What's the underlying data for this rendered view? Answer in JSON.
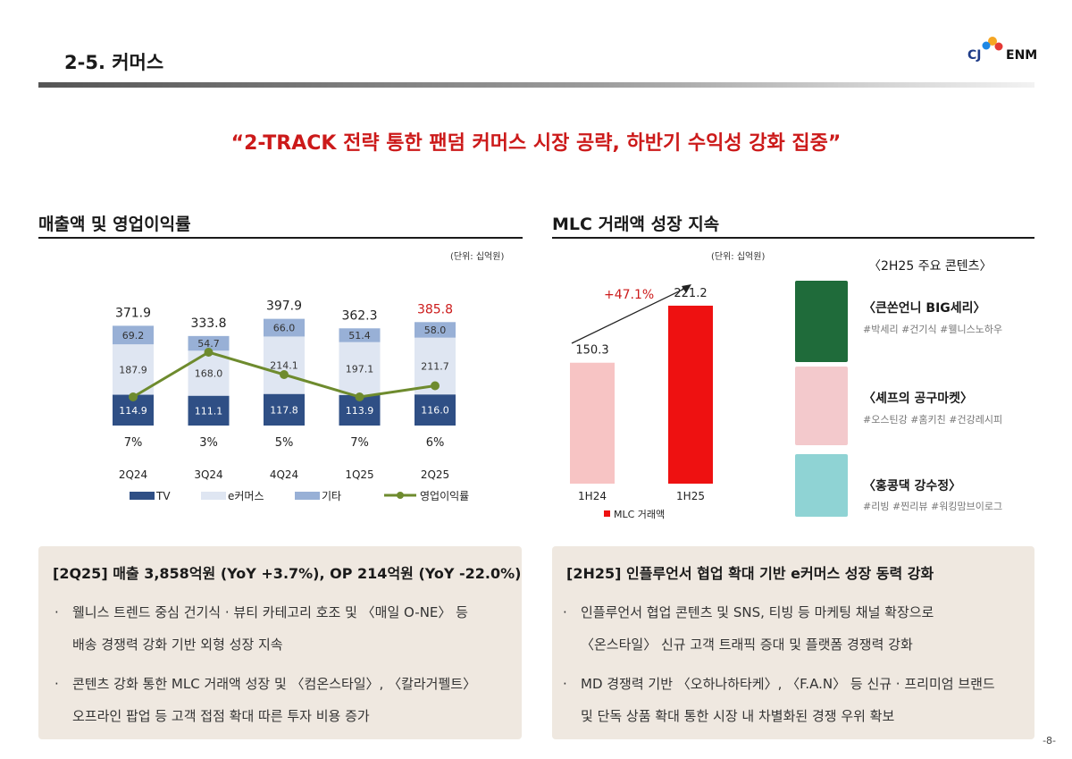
{
  "header": {
    "page_title": "2-5. 커머스",
    "logo_cj": "CJ",
    "logo_enm": "ENM",
    "headline": "“2-TRACK 전략 통한 팬덤 커머스 시장 공략, 하반기 수익성 강화 집중”"
  },
  "left_section": {
    "title": "매출액 및 영업이익률",
    "unit": "(단위: 십억원)"
  },
  "right_section": {
    "title": "MLC 거래액 성장 지속",
    "unit": "(단위: 십억원)",
    "contents_title": "〈2H25 주요 콘텐츠〉"
  },
  "contents": [
    {
      "title": "〈큰쏜언니 BIG세리〉",
      "tags": "#박세리 #건기식 #웰니스노하우",
      "thumb_color": "#1f6b3a"
    },
    {
      "title": "〈셰프의 공구마켓〉",
      "tags": "#오스틴강 #홈키친 #건강레시피",
      "thumb_color": "#f3c9cc"
    },
    {
      "title": "〈홍콩댁 강수정〉",
      "tags": "#리빙 #찐리뷰 #워킹맘브이로그",
      "thumb_color": "#8fd3d4"
    }
  ],
  "colors": {
    "tv": "#2f4f85",
    "ecommerce": "#dfe6f2",
    "other": "#98b0d6",
    "op_line": "#6e8b2e",
    "mlc_2h25": "#ee1111",
    "mlc_1h24": "#f7c4c4",
    "accent_red": "#cc1a1a"
  },
  "chart_data": [
    {
      "type": "bar",
      "stacked": true,
      "categories": [
        "2Q24",
        "3Q24",
        "4Q24",
        "1Q25",
        "2Q25"
      ],
      "series": [
        {
          "name": "TV",
          "values": [
            114.9,
            111.1,
            117.8,
            113.9,
            116.0
          ]
        },
        {
          "name": "e커머스",
          "values": [
            187.9,
            168.0,
            214.1,
            197.1,
            211.7
          ]
        },
        {
          "name": "기타",
          "values": [
            69.2,
            54.7,
            66.0,
            51.4,
            58.0
          ]
        }
      ],
      "totals": [
        371.9,
        333.8,
        397.9,
        362.3,
        385.8
      ],
      "line_series": {
        "name": "영업이익률",
        "values": [
          7,
          3,
          5,
          7,
          6
        ],
        "labels": [
          "7%",
          "3%",
          "5%",
          "7%",
          "6%"
        ]
      },
      "legend": [
        "TV",
        "e커머스",
        "기타",
        "영업이익률"
      ],
      "legend_position": "bottom"
    },
    {
      "type": "bar",
      "categories": [
        "1H24",
        "1H25"
      ],
      "series": [
        {
          "name": "MLC 거래액",
          "values": [
            150.3,
            221.2
          ]
        }
      ],
      "annotation": "+47.1%",
      "legend": [
        "MLC 거래액"
      ],
      "legend_position": "bottom"
    }
  ],
  "left_box": {
    "title": "[2Q25] 매출 3,858억원 (YoY +3.7%), OP 214억원 (YoY -22.0%)",
    "bullets": [
      {
        "dot": "·",
        "line1": "웰니스 트렌드 중심 건기식 · 뷰티 카테고리 호조 및 〈매일 O-NE〉 등",
        "line2": "배송 경쟁력 강화 기반 외형 성장 지속"
      },
      {
        "dot": "·",
        "line1": "콘텐츠 강화 통한 MLC 거래액 성장 및 〈컴온스타일〉, 〈칼라거펠트〉",
        "line2": "오프라인 팝업 등 고객 접점 확대 따른 투자 비용 증가"
      }
    ]
  },
  "right_box": {
    "title": "[2H25] 인플루언서 협업 확대 기반 e커머스 성장 동력 강화",
    "bullets": [
      {
        "dot": "·",
        "line1": "인플루언서 협업 콘텐츠 및 SNS, 티빙 등 마케팅 채널 확장으로",
        "line2": "〈온스타일〉 신규 고객 트래픽 증대 및 플랫폼 경쟁력 강화"
      },
      {
        "dot": "·",
        "line1": "MD 경쟁력 기반 〈오하나하타케〉, 〈F.A.N〉 등 신규 · 프리미엄 브랜드",
        "line2": "및 단독 상품 확대 통한 시장 내 차별화된 경쟁 우위 확보"
      }
    ]
  },
  "page_number": "-8-"
}
